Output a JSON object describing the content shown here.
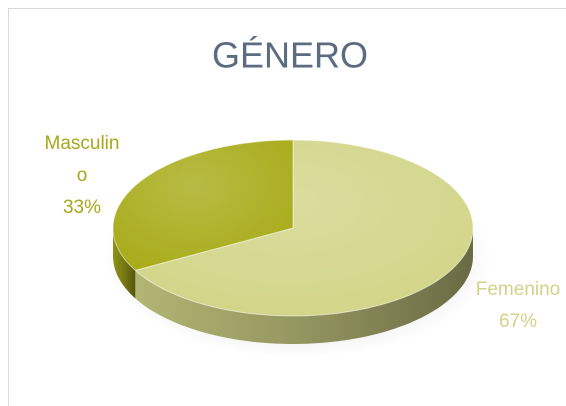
{
  "chart_data": {
    "type": "pie",
    "title": "GÉNERO",
    "categories": [
      "Femenino",
      "Masculino"
    ],
    "values": [
      67,
      33
    ],
    "value_labels": [
      "67%",
      "33%"
    ],
    "colors": [
      "#d2d588",
      "#a8ac1a"
    ]
  }
}
